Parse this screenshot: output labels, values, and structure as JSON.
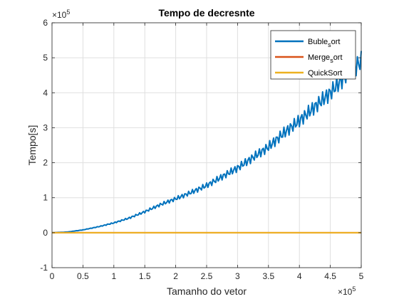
{
  "chart_data": {
    "type": "line",
    "title": "Tempo de decresnte",
    "xlabel": "Tamanho do vetor",
    "ylabel": "Tempo[s]",
    "xlim": [
      0,
      500000
    ],
    "ylim": [
      -100000,
      600000
    ],
    "grid": true,
    "legend_position": "top-right",
    "x_exponent_label": {
      "base": "×10",
      "power": "5"
    },
    "y_exponent_label": {
      "base": "×10",
      "power": "5"
    },
    "x_ticks": [
      {
        "value": 0,
        "label": "0"
      },
      {
        "value": 50000,
        "label": "0.5"
      },
      {
        "value": 100000,
        "label": "1"
      },
      {
        "value": 150000,
        "label": "1.5"
      },
      {
        "value": 200000,
        "label": "2"
      },
      {
        "value": 250000,
        "label": "2.5"
      },
      {
        "value": 300000,
        "label": "3"
      },
      {
        "value": 350000,
        "label": "3.5"
      },
      {
        "value": 400000,
        "label": "4"
      },
      {
        "value": 450000,
        "label": "4.5"
      },
      {
        "value": 500000,
        "label": "5"
      }
    ],
    "y_ticks": [
      {
        "value": -100000,
        "label": "-1"
      },
      {
        "value": 0,
        "label": "0"
      },
      {
        "value": 100000,
        "label": "1"
      },
      {
        "value": 200000,
        "label": "2"
      },
      {
        "value": 300000,
        "label": "3"
      },
      {
        "value": 400000,
        "label": "4"
      },
      {
        "value": 500000,
        "label": "5"
      },
      {
        "value": 600000,
        "label": "6"
      }
    ],
    "series": [
      {
        "name": "Buble_sort",
        "legend_label": {
          "main": "Buble",
          "sub": "s",
          "rest": "ort"
        },
        "color": "#0072BD",
        "x": [
          0,
          25000,
          50000,
          75000,
          100000,
          125000,
          150000,
          175000,
          200000,
          225000,
          250000,
          275000,
          300000,
          325000,
          350000,
          375000,
          400000,
          425000,
          450000,
          475000,
          500000
        ],
        "y": [
          0,
          2000,
          8000,
          17000,
          28000,
          42000,
          60000,
          80000,
          97000,
          115000,
          135000,
          160000,
          185000,
          215000,
          245000,
          285000,
          320000,
          360000,
          400000,
          450000,
          490000
        ]
      },
      {
        "name": "Merge_sort",
        "legend_label": {
          "main": "Merge",
          "sub": "s",
          "rest": "ort"
        },
        "color": "#D95319",
        "x": [
          0,
          500000
        ],
        "y": [
          0,
          0
        ]
      },
      {
        "name": "QuickSort",
        "legend_label": {
          "main": "QuickSort",
          "sub": "",
          "rest": ""
        },
        "color": "#EDB120",
        "x": [
          0,
          500000
        ],
        "y": [
          0,
          0
        ]
      }
    ]
  }
}
